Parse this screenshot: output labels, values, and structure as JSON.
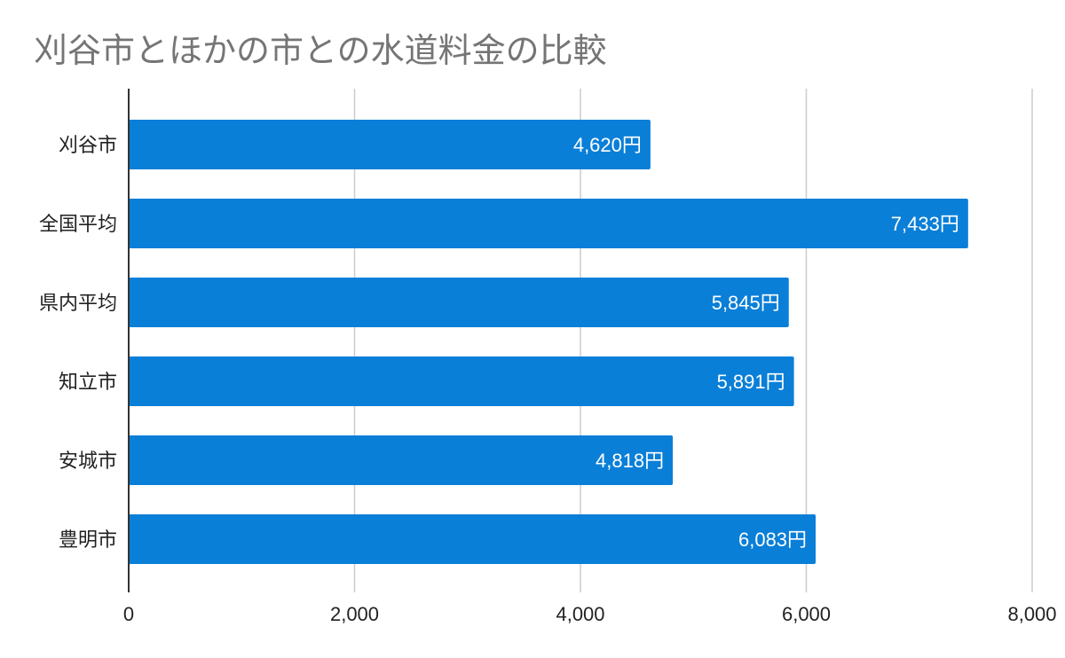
{
  "chart_data": {
    "type": "bar",
    "orientation": "horizontal",
    "title": "刈谷市とほかの市との水道料金の比較",
    "categories": [
      "刈谷市",
      "全国平均",
      "県内平均",
      "知立市",
      "安城市",
      "豊明市"
    ],
    "values": [
      4620,
      7433,
      5845,
      5891,
      4818,
      6083
    ],
    "data_labels": [
      "4,620円",
      "7,433円",
      "5,845円",
      "5,891円",
      "4,818円",
      "6,083円"
    ],
    "xlim": [
      0,
      8000
    ],
    "x_ticks": [
      0,
      2000,
      4000,
      6000,
      8000
    ],
    "x_tick_labels": [
      "0",
      "2,000",
      "4,000",
      "6,000",
      "8,000"
    ],
    "grid": true,
    "legend": "none",
    "bar_color": "#0a7fd8"
  }
}
